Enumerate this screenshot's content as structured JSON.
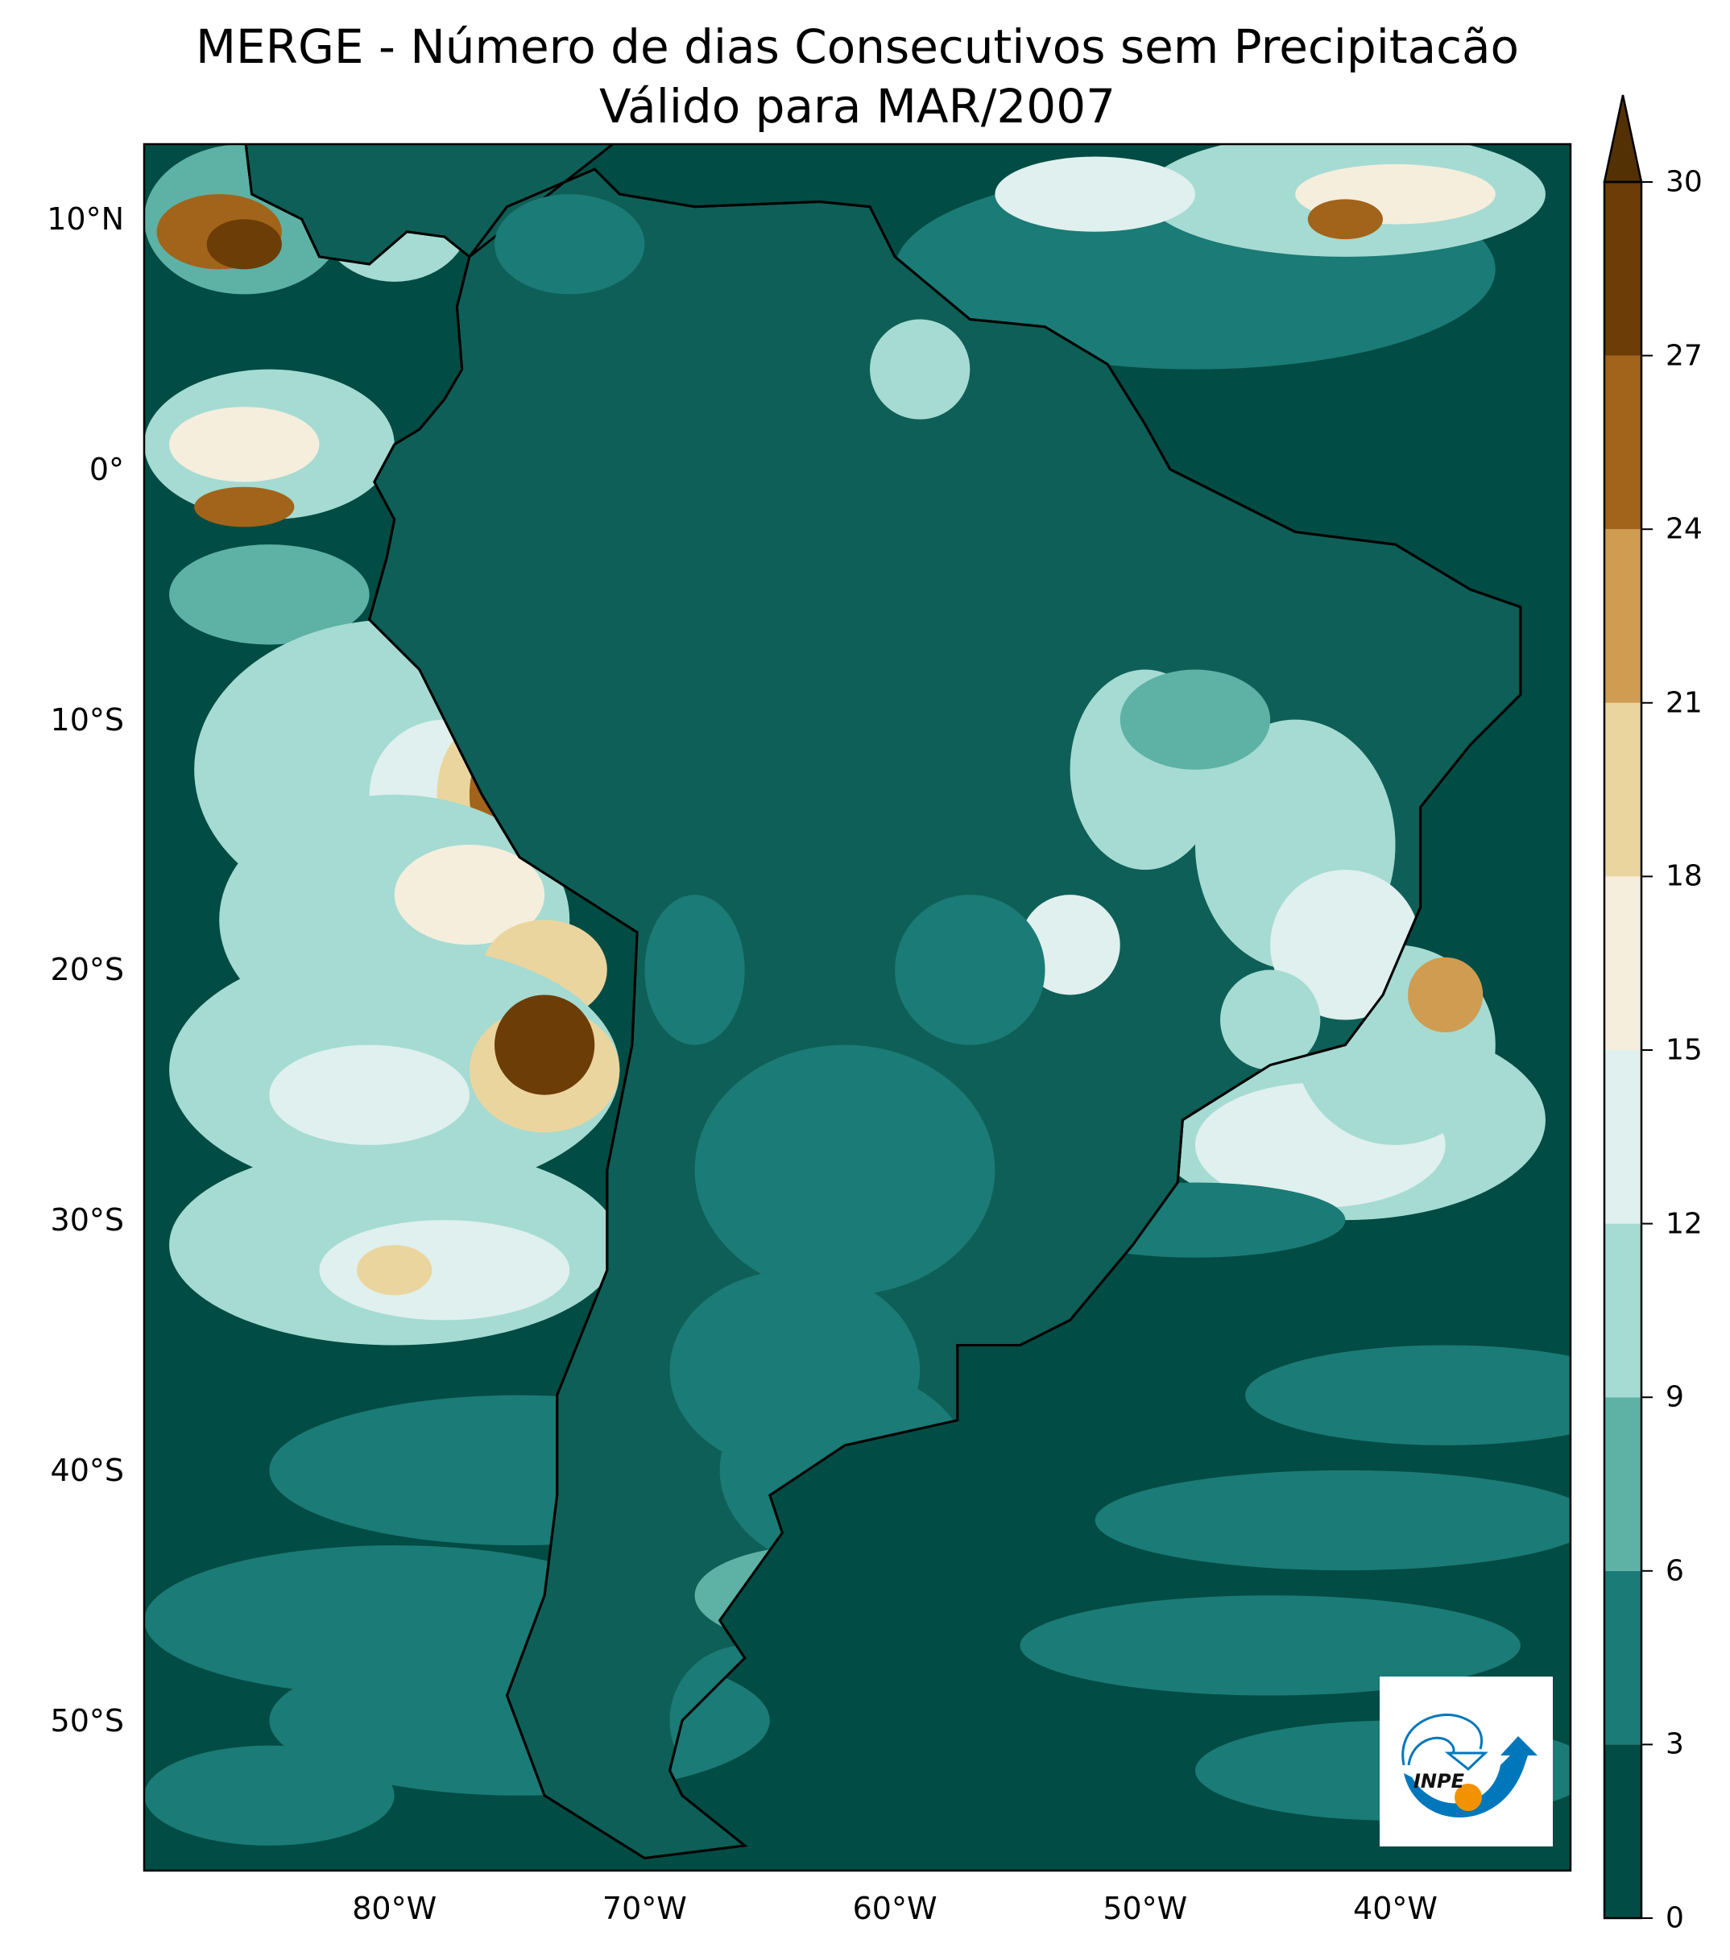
{
  "title": {
    "line1": "MERGE - Número de dias Consecutivos sem Precipitacão",
    "line2": "Válido para MAR/2007"
  },
  "map": {
    "extent_deg": {
      "lon_min": -90,
      "lon_max": -33,
      "lat_min": -56,
      "lat_max": 13
    },
    "lat_ticks": [
      {
        "value": 10,
        "label": "10°N"
      },
      {
        "value": 0,
        "label": "0°"
      },
      {
        "value": -10,
        "label": "10°S"
      },
      {
        "value": -20,
        "label": "20°S"
      },
      {
        "value": -30,
        "label": "30°S"
      },
      {
        "value": -40,
        "label": "40°S"
      },
      {
        "value": -50,
        "label": "50°S"
      }
    ],
    "lon_ticks": [
      {
        "value": -80,
        "label": "80°W"
      },
      {
        "value": -70,
        "label": "70°W"
      },
      {
        "value": -60,
        "label": "60°W"
      },
      {
        "value": -50,
        "label": "50°W"
      },
      {
        "value": -40,
        "label": "40°W"
      }
    ]
  },
  "colorbar": {
    "levels": [
      "0",
      "3",
      "6",
      "9",
      "12",
      "15",
      "18",
      "21",
      "24",
      "27",
      "30"
    ],
    "colors": [
      "#014c44",
      "#1b7b76",
      "#5db2a5",
      "#a5dbd2",
      "#dff0ee",
      "#f5eedd",
      "#ebd59e",
      "#cf9c52",
      "#a1641a",
      "#6d3d07"
    ],
    "extend_color": "#543005"
  },
  "logo": {
    "text": "INPE",
    "blue": "#0077bb",
    "orange": "#f39200"
  }
}
